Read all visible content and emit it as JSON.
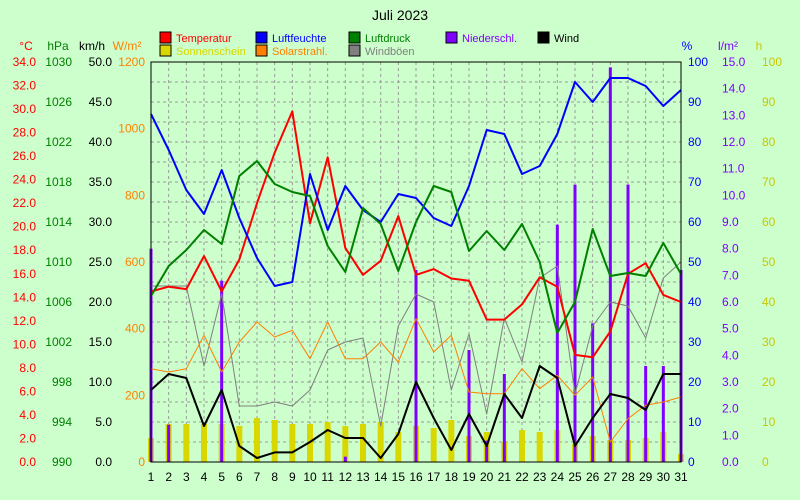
{
  "chart_data": {
    "type": "line",
    "title": "Juli 2023",
    "x": [
      1,
      2,
      3,
      4,
      5,
      6,
      7,
      8,
      9,
      10,
      11,
      12,
      13,
      14,
      15,
      16,
      17,
      18,
      19,
      20,
      21,
      22,
      23,
      24,
      25,
      26,
      27,
      28,
      29,
      30,
      31
    ],
    "axes": [
      {
        "id": "temp",
        "unit": "°C",
        "color": "#ff0000",
        "side": "left",
        "range": [
          0,
          34
        ],
        "ticks": [
          "0.0",
          "2.0",
          "4.0",
          "6.0",
          "8.0",
          "10.0",
          "12.0",
          "14.0",
          "16.0",
          "18.0",
          "20.0",
          "22.0",
          "24.0",
          "26.0",
          "28.0",
          "30.0",
          "32.0",
          "34.0"
        ]
      },
      {
        "id": "pressure",
        "unit": "hPa",
        "color": "#008000",
        "side": "left",
        "range": [
          990,
          1030
        ],
        "ticks": [
          "990",
          "994",
          "998",
          "1002",
          "1006",
          "1010",
          "1014",
          "1018",
          "1022",
          "1026",
          "1030"
        ]
      },
      {
        "id": "wind",
        "unit": "km/h",
        "color": "#000000",
        "side": "left",
        "range": [
          0,
          50
        ],
        "ticks": [
          "0.0",
          "5.0",
          "10.0",
          "15.0",
          "20.0",
          "25.0",
          "30.0",
          "35.0",
          "40.0",
          "45.0",
          "50.0"
        ]
      },
      {
        "id": "solar",
        "unit": "W/m²",
        "color": "#ff8000",
        "side": "left",
        "range": [
          0,
          1200
        ],
        "ticks": [
          "0",
          "200",
          "400",
          "600",
          "800",
          "1000",
          "1200"
        ]
      },
      {
        "id": "humidity",
        "unit": "%",
        "color": "#0000ff",
        "side": "right",
        "range": [
          0,
          100
        ],
        "ticks": [
          "0",
          "10",
          "20",
          "30",
          "40",
          "50",
          "60",
          "70",
          "80",
          "90",
          "100"
        ]
      },
      {
        "id": "precip",
        "unit": "l/m²",
        "color": "#8000ff",
        "side": "right",
        "range": [
          0,
          15
        ],
        "ticks": [
          "0.0",
          "1.0",
          "2.0",
          "3.0",
          "4.0",
          "5.0",
          "6.0",
          "7.0",
          "8.0",
          "9.0",
          "10.0",
          "11.0",
          "12.0",
          "13.0",
          "14.0",
          "15.0"
        ]
      },
      {
        "id": "sunshine",
        "unit": "h",
        "color": "#c8c800",
        "side": "right",
        "range": [
          0,
          100
        ],
        "ticks": [
          "0",
          "10",
          "20",
          "30",
          "40",
          "50",
          "60",
          "70",
          "80",
          "90",
          "100"
        ]
      }
    ],
    "legend": [
      {
        "label": "Temperatur",
        "color": "#ff0000"
      },
      {
        "label": "Luftfeuchte",
        "color": "#0000ff"
      },
      {
        "label": "Luftdruck",
        "color": "#008000"
      },
      {
        "label": "Niederschl.",
        "color": "#8000ff"
      },
      {
        "label": "Wind",
        "color": "#000000"
      },
      {
        "label": "Sonnenschein",
        "color": "#d8d800"
      },
      {
        "label": "Solarstrahl.",
        "color": "#ff8000"
      },
      {
        "label": "Windböen",
        "color": "#808080"
      }
    ],
    "series": [
      {
        "name": "Temperatur",
        "axis": "temp",
        "kind": "line",
        "color": "#ff0000",
        "width": 2,
        "values": [
          14.5,
          14.9,
          14.7,
          17.5,
          14.5,
          17.2,
          22.0,
          26.3,
          29.8,
          20.3,
          25.9,
          18.2,
          15.9,
          17.1,
          20.9,
          15.9,
          16.4,
          15.6,
          15.4,
          12.1,
          12.1,
          13.4,
          15.7,
          14.9,
          9.1,
          8.9,
          11.1,
          16.0,
          16.9,
          14.2,
          13.6
        ]
      },
      {
        "name": "Luftfeuchte",
        "axis": "humidity",
        "kind": "line",
        "color": "#0000ff",
        "width": 2,
        "values": [
          87,
          78,
          68,
          62,
          73,
          61,
          51,
          44,
          45,
          72,
          58,
          69,
          63,
          60,
          67,
          66,
          61,
          59,
          69,
          83,
          82,
          72,
          74,
          82,
          95,
          90,
          96,
          96,
          94,
          89,
          93
        ]
      },
      {
        "name": "Luftdruck",
        "axis": "pressure",
        "kind": "line",
        "color": "#008000",
        "width": 2,
        "values": [
          1006.6,
          1009.6,
          1011.2,
          1013.2,
          1011.8,
          1018.6,
          1020.1,
          1017.8,
          1017.0,
          1016.6,
          1011.6,
          1009.0,
          1015.4,
          1013.8,
          1009.1,
          1014.0,
          1017.6,
          1017.0,
          1011.1,
          1013.1,
          1011.2,
          1013.8,
          1010.0,
          1002.9,
          1006.0,
          1013.3,
          1008.6,
          1008.9,
          1008.6,
          1011.9,
          1008.8
        ]
      },
      {
        "name": "Wind",
        "axis": "wind",
        "kind": "line",
        "color": "#000000",
        "width": 2,
        "values": [
          9.0,
          11.0,
          10.5,
          4.5,
          9.0,
          2.0,
          0.5,
          1.2,
          1.2,
          2.5,
          4.0,
          3.0,
          3.0,
          0.5,
          3.5,
          10.0,
          5.5,
          1.5,
          6.0,
          2.0,
          8.5,
          5.5,
          12.0,
          10.5,
          2.0,
          5.5,
          8.5,
          8.0,
          6.5,
          11.0,
          11.0
        ]
      },
      {
        "name": "Windböen",
        "axis": "wind",
        "kind": "line",
        "color": "#808080",
        "width": 1,
        "values": [
          22.0,
          22.0,
          22.0,
          12.0,
          21.0,
          7.0,
          7.0,
          7.5,
          7.0,
          9.0,
          14.0,
          15.0,
          15.5,
          4.5,
          17.0,
          21.0,
          20.0,
          9.0,
          16.0,
          6.0,
          18.0,
          12.5,
          23.0,
          24.5,
          8.5,
          17.0,
          20.0,
          19.5,
          15.5,
          23.0,
          25.0
        ]
      },
      {
        "name": "Solarstrahl.",
        "axis": "solar",
        "kind": "line",
        "color": "#ff8000",
        "width": 1,
        "values": [
          280,
          270,
          280,
          380,
          270,
          360,
          420,
          375,
          395,
          310,
          420,
          310,
          310,
          360,
          300,
          430,
          330,
          380,
          210,
          205,
          205,
          280,
          220,
          260,
          200,
          255,
          60,
          130,
          170,
          180,
          195
        ]
      },
      {
        "name": "Sonnenschein",
        "axis": "sunshine",
        "kind": "bar",
        "color": "#d8d800",
        "values": [
          6.0,
          9.5,
          9.5,
          9.5,
          9.5,
          9.0,
          11.0,
          10.5,
          9.5,
          9.5,
          10.0,
          9.0,
          9.5,
          10.0,
          7.5,
          9.0,
          8.5,
          10.5,
          6.5,
          7.5,
          5.0,
          8.0,
          7.5,
          8.0,
          4.5,
          6.5,
          5.5,
          5.5,
          6.0,
          7.5,
          2.0
        ]
      },
      {
        "name": "Niederschl.",
        "axis": "precip",
        "kind": "bar",
        "color": "#8000ff",
        "values": [
          8.0,
          1.4,
          0,
          0,
          6.8,
          0,
          0,
          0,
          0,
          0,
          0,
          0.2,
          0,
          0,
          0,
          7.2,
          0,
          0,
          4.2,
          0.8,
          3.3,
          0,
          0,
          8.9,
          10.4,
          5.2,
          14.8,
          10.4,
          3.6,
          3.6,
          7.2
        ]
      }
    ],
    "grid": true,
    "xlim": [
      1,
      31
    ]
  }
}
